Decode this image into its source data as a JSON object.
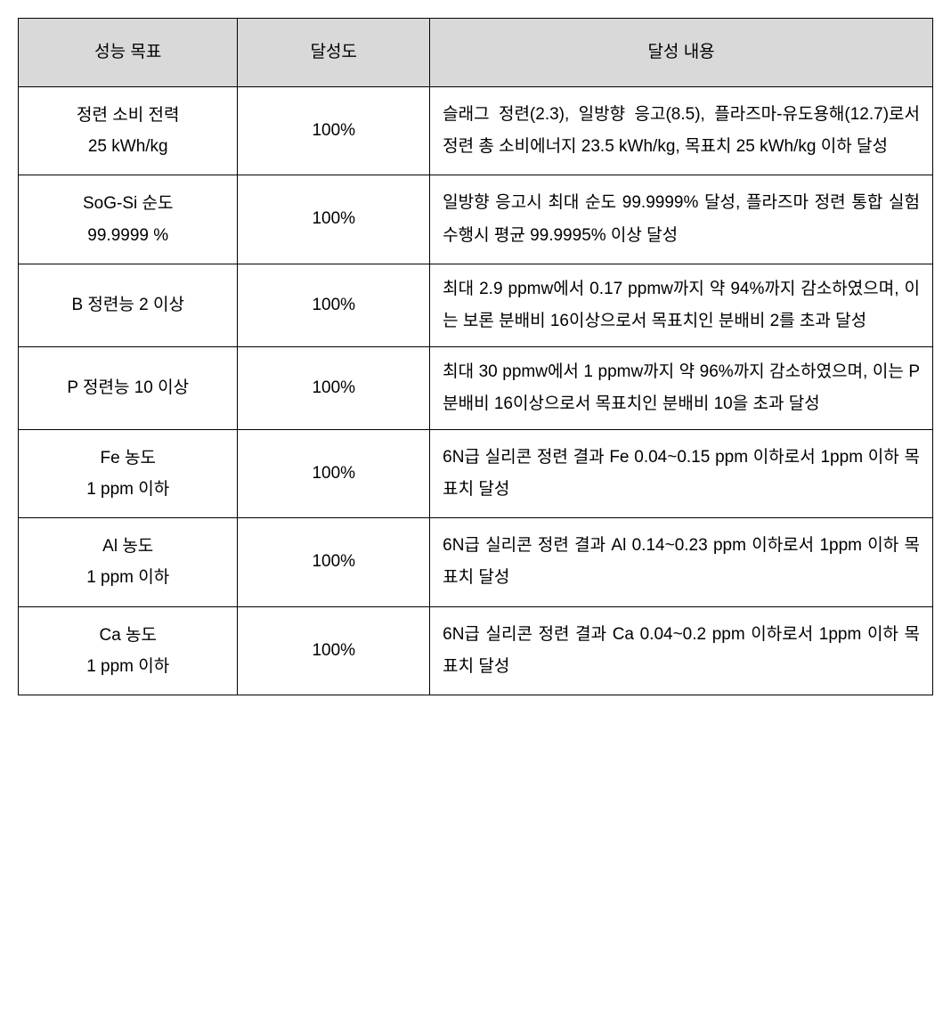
{
  "table": {
    "header_bg": "#d9d9d9",
    "border_color": "#000000",
    "font_size": 19,
    "columns": [
      {
        "label": "성능 목표",
        "width_pct": 24,
        "align": "center"
      },
      {
        "label": "달성도",
        "width_pct": 21,
        "align": "center"
      },
      {
        "label": "달성 내용",
        "width_pct": 55,
        "align": "justify"
      }
    ],
    "rows": [
      {
        "target_line1": "정련 소비 전력",
        "target_line2": "25 kWh/kg",
        "achievement": "100%",
        "content": "슬래그 정련(2.3), 일방향 응고(8.5), 플라즈마-유도용해(12.7)로서 정련 총 소비에너지 23.5 kWh/kg, 목표치 25 kWh/kg 이하 달성"
      },
      {
        "target_line1": "SoG-Si 순도",
        "target_line2": "99.9999 %",
        "achievement": "100%",
        "content": "일방향 응고시 최대 순도 99.9999% 달성, 플라즈마 정련 통합 실험 수행시 평균 99.9995% 이상 달성"
      },
      {
        "target_line1": "B 정련능 2 이상",
        "target_line2": "",
        "achievement": "100%",
        "content": "최대 2.9 ppmw에서 0.17 ppmw까지 약 94%까지 감소하였으며, 이는 보론 분배비 16이상으로서 목표치인 분배비 2를 초과 달성"
      },
      {
        "target_line1": "P 정련능 10 이상",
        "target_line2": "",
        "achievement": "100%",
        "content": "최대 30 ppmw에서 1 ppmw까지 약 96%까지 감소하였으며, 이는 P 분배비 16이상으로서 목표치인 분배비 10을 초과 달성"
      },
      {
        "target_line1": "Fe 농도",
        "target_line2": "1 ppm 이하",
        "achievement": "100%",
        "content": " 6N급 실리콘 정련 결과 Fe 0.04~0.15 ppm 이하로서 1ppm 이하 목표치 달성"
      },
      {
        "target_line1": "Al 농도",
        "target_line2": "1 ppm 이하",
        "achievement": "100%",
        "content": " 6N급 실리콘 정련 결과 Al 0.14~0.23 ppm 이하로서 1ppm 이하 목표치 달성"
      },
      {
        "target_line1": "Ca 농도",
        "target_line2": "1 ppm 이하",
        "achievement": "100%",
        "content": " 6N급 실리콘 정련 결과 Ca 0.04~0.2 ppm 이하로서 1ppm 이하 목표치 달성"
      }
    ]
  }
}
